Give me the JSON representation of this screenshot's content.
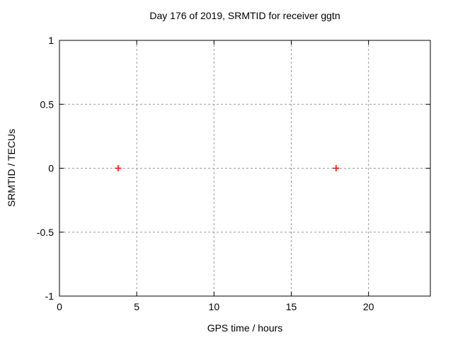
{
  "chart_data": {
    "type": "scatter",
    "title": "Day 176 of 2019, SRMTID for receiver ggtn",
    "xlabel": "GPS time / hours",
    "ylabel": "SRMTID / TECUs",
    "xlim": [
      0,
      24
    ],
    "ylim": [
      -1,
      1
    ],
    "xticks": [
      0,
      5,
      10,
      15,
      20
    ],
    "yticks": [
      -1,
      -0.5,
      0,
      0.5,
      1
    ],
    "grid": true,
    "legend": "none",
    "colors": {
      "marker": "#ff0000",
      "grid": "#9b9b9b",
      "border": "#000000",
      "background": "#ffffff"
    },
    "series": [
      {
        "name": "SRMTID",
        "marker": "plus",
        "color": "#ff0000",
        "points": [
          [
            3.8,
            0
          ],
          [
            17.9,
            0
          ]
        ]
      }
    ]
  }
}
